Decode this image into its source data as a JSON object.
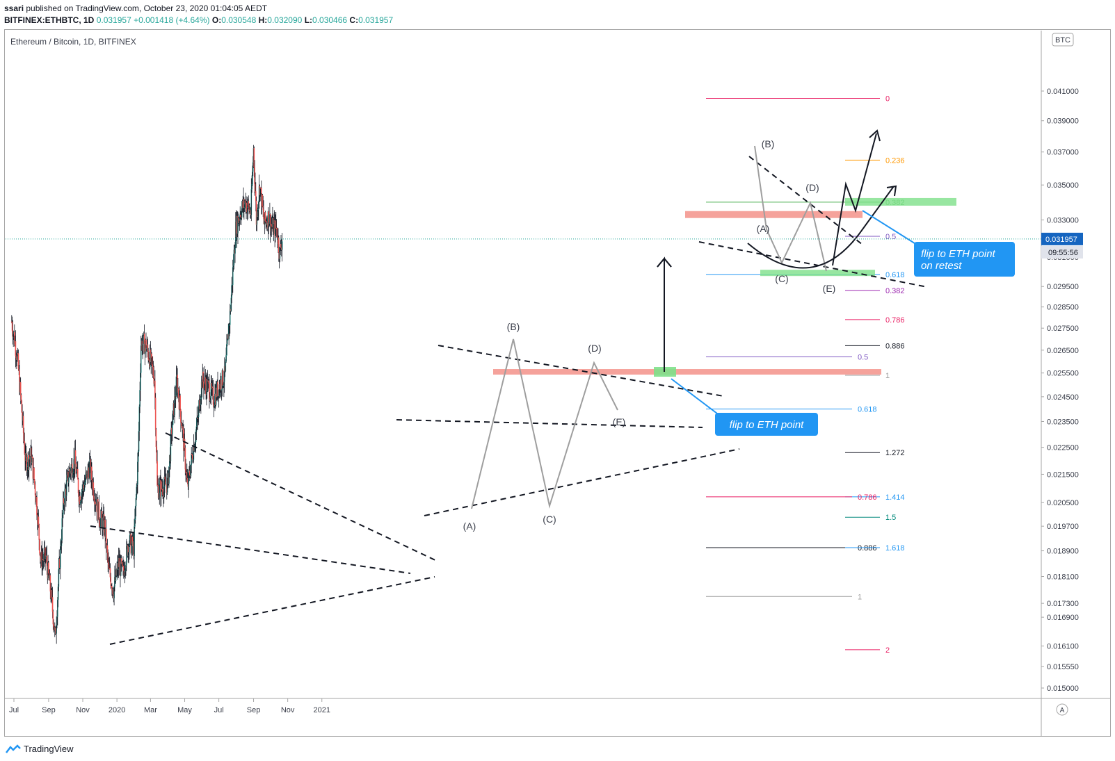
{
  "header": {
    "author": "ssari",
    "published_text": " published on TradingView.com, October 23, 2020 01:04:05 AEDT",
    "symbol": "BITFINEX:ETHBTC, 1D",
    "last": "0.031957",
    "change": "+0.001418 (+4.64%)",
    "o_label": "O:",
    "o_val": "0.030548",
    "h_label": "H:",
    "h_val": "0.032090",
    "l_label": "L:",
    "l_val": "0.030466",
    "c_label": "C:",
    "c_val": "0.031957"
  },
  "chart_title": "Ethereum / Bitcoin, 1D, BITFINEX",
  "currency_badge": "BTC",
  "price_label": "0.031957",
  "countdown_label": "09:55:56",
  "auto_scale_label": "A",
  "footer": {
    "brand": "TradingView"
  },
  "colors": {
    "up": "#26a69a",
    "down": "#ef5350",
    "frame": "#a6a6a6",
    "callout": "#2196f3"
  },
  "chart_data": {
    "type": "candlestick",
    "title": "Ethereum / Bitcoin, 1D, BITFINEX",
    "ylim": [
      0.015,
      0.045
    ],
    "y_ticks": [
      "0.041000",
      "0.039000",
      "0.037000",
      "0.035000",
      "0.033000",
      "0.031000",
      "0.029500",
      "0.028500",
      "0.027500",
      "0.026500",
      "0.025500",
      "0.024500",
      "0.023500",
      "0.022500",
      "0.021500",
      "0.020500",
      "0.019700",
      "0.018900",
      "0.018100",
      "0.017300",
      "0.016900",
      "0.016100",
      "0.015550",
      "0.015000"
    ],
    "y_tick_values": [
      0.041,
      0.039,
      0.037,
      0.035,
      0.033,
      0.031,
      0.0295,
      0.0285,
      0.0275,
      0.0265,
      0.0255,
      0.0245,
      0.0235,
      0.0225,
      0.0215,
      0.0205,
      0.0197,
      0.0189,
      0.0181,
      0.0173,
      0.0169,
      0.0161,
      0.01555,
      0.015
    ],
    "x_ticks": [
      "Jul",
      "Sep",
      "Nov",
      "2020",
      "Mar",
      "May",
      "Jul",
      "Sep",
      "Nov",
      "2021"
    ],
    "x_tick_dates": [
      "2019-07-01",
      "2019-09-01",
      "2019-11-01",
      "2020-01-01",
      "2020-03-01",
      "2020-05-01",
      "2020-07-01",
      "2020-09-01",
      "2020-11-01",
      "2021-01-01"
    ],
    "close_path": [
      [
        "2019-06-27",
        0.0278
      ],
      [
        "2019-07-07",
        0.0262
      ],
      [
        "2019-07-14",
        0.0242
      ],
      [
        "2019-07-22",
        0.0219
      ],
      [
        "2019-08-01",
        0.0222
      ],
      [
        "2019-08-10",
        0.0206
      ],
      [
        "2019-08-18",
        0.0186
      ],
      [
        "2019-08-27",
        0.0187
      ],
      [
        "2019-09-05",
        0.0176
      ],
      [
        "2019-09-13",
        0.0163
      ],
      [
        "2019-09-18",
        0.0178
      ],
      [
        "2019-09-28",
        0.0206
      ],
      [
        "2019-10-08",
        0.0216
      ],
      [
        "2019-10-18",
        0.022
      ],
      [
        "2019-10-26",
        0.0207
      ],
      [
        "2019-11-05",
        0.0212
      ],
      [
        "2019-11-13",
        0.0218
      ],
      [
        "2019-11-22",
        0.0208
      ],
      [
        "2019-12-01",
        0.02
      ],
      [
        "2019-12-10",
        0.0197
      ],
      [
        "2019-12-17",
        0.0183
      ],
      [
        "2019-12-26",
        0.0177
      ],
      [
        "2020-01-04",
        0.0185
      ],
      [
        "2020-01-12",
        0.0182
      ],
      [
        "2020-01-22",
        0.0192
      ],
      [
        "2020-01-31",
        0.019
      ],
      [
        "2020-02-08",
        0.0222
      ],
      [
        "2020-02-13",
        0.0268
      ],
      [
        "2020-02-20",
        0.0268
      ],
      [
        "2020-02-28",
        0.0262
      ],
      [
        "2020-03-08",
        0.0253
      ],
      [
        "2020-03-13",
        0.021
      ],
      [
        "2020-03-21",
        0.021
      ],
      [
        "2020-04-01",
        0.0212
      ],
      [
        "2020-04-08",
        0.0232
      ],
      [
        "2020-04-17",
        0.0252
      ],
      [
        "2020-04-26",
        0.0234
      ],
      [
        "2020-05-06",
        0.021
      ],
      [
        "2020-05-13",
        0.022
      ],
      [
        "2020-05-24",
        0.0235
      ],
      [
        "2020-06-01",
        0.0252
      ],
      [
        "2020-06-12",
        0.0249
      ],
      [
        "2020-06-22",
        0.0244
      ],
      [
        "2020-07-02",
        0.025
      ],
      [
        "2020-07-12",
        0.0254
      ],
      [
        "2020-07-22",
        0.0285
      ],
      [
        "2020-07-31",
        0.0325
      ],
      [
        "2020-08-10",
        0.0336
      ],
      [
        "2020-08-18",
        0.034
      ],
      [
        "2020-08-27",
        0.0334
      ],
      [
        "2020-09-01",
        0.0372
      ],
      [
        "2020-09-06",
        0.033
      ],
      [
        "2020-09-12",
        0.035
      ],
      [
        "2020-09-20",
        0.0328
      ],
      [
        "2020-09-28",
        0.0332
      ],
      [
        "2020-10-04",
        0.0326
      ],
      [
        "2020-10-12",
        0.0325
      ],
      [
        "2020-10-18",
        0.0312
      ],
      [
        "2020-10-22",
        0.032
      ]
    ],
    "last_close": 0.031957,
    "fib_levels": [
      {
        "label": "0",
        "value": 0.0405,
        "color": "#e91e63"
      },
      {
        "label": "0.236",
        "value": 0.0365,
        "color": "#ff9800"
      },
      {
        "label": "0.382",
        "value": 0.034,
        "color": "#4caf50"
      },
      {
        "label": "0.5",
        "value": 0.0321,
        "color": "#7e57c2"
      },
      {
        "label": "0.618",
        "value": 0.0301,
        "color": "#2196f3"
      },
      {
        "label": "0.382",
        "value": 0.0293,
        "color": "#9c27b0"
      },
      {
        "label": "0.786",
        "value": 0.0279,
        "color": "#e91e63"
      },
      {
        "label": "0.886",
        "value": 0.0267,
        "color": "#131722"
      },
      {
        "label": "0.5",
        "value": 0.0262,
        "color": "#7e57c2"
      },
      {
        "label": "1",
        "value": 0.0254,
        "color": "#9e9e9e"
      },
      {
        "label": "0.618",
        "value": 0.024,
        "color": "#2196f3"
      },
      {
        "label": "1.272",
        "value": 0.0223,
        "color": "#131722"
      },
      {
        "label": "1.414",
        "value": 0.0207,
        "color": "#2196f3"
      },
      {
        "label": "0.786",
        "value": 0.0207,
        "color": "#e91e63"
      },
      {
        "label": "1.5",
        "value": 0.02,
        "color": "#00897b"
      },
      {
        "label": "0.886",
        "value": 0.019,
        "color": "#131722"
      },
      {
        "label": "1.618",
        "value": 0.019,
        "color": "#2196f3"
      },
      {
        "label": "1",
        "value": 0.0175,
        "color": "#9e9e9e"
      },
      {
        "label": "2",
        "value": 0.016,
        "color": "#e91e63"
      }
    ],
    "annotations": {
      "wave_labels": [
        "(A)",
        "(B)",
        "(C)",
        "(D)",
        "(E)",
        "(B)",
        "(D)",
        "(A)",
        "(C)",
        "(E)"
      ],
      "callout_1": "flip to ETH point",
      "callout_2_line1": "flip to ETH point",
      "callout_2_line2": "on retest"
    }
  }
}
